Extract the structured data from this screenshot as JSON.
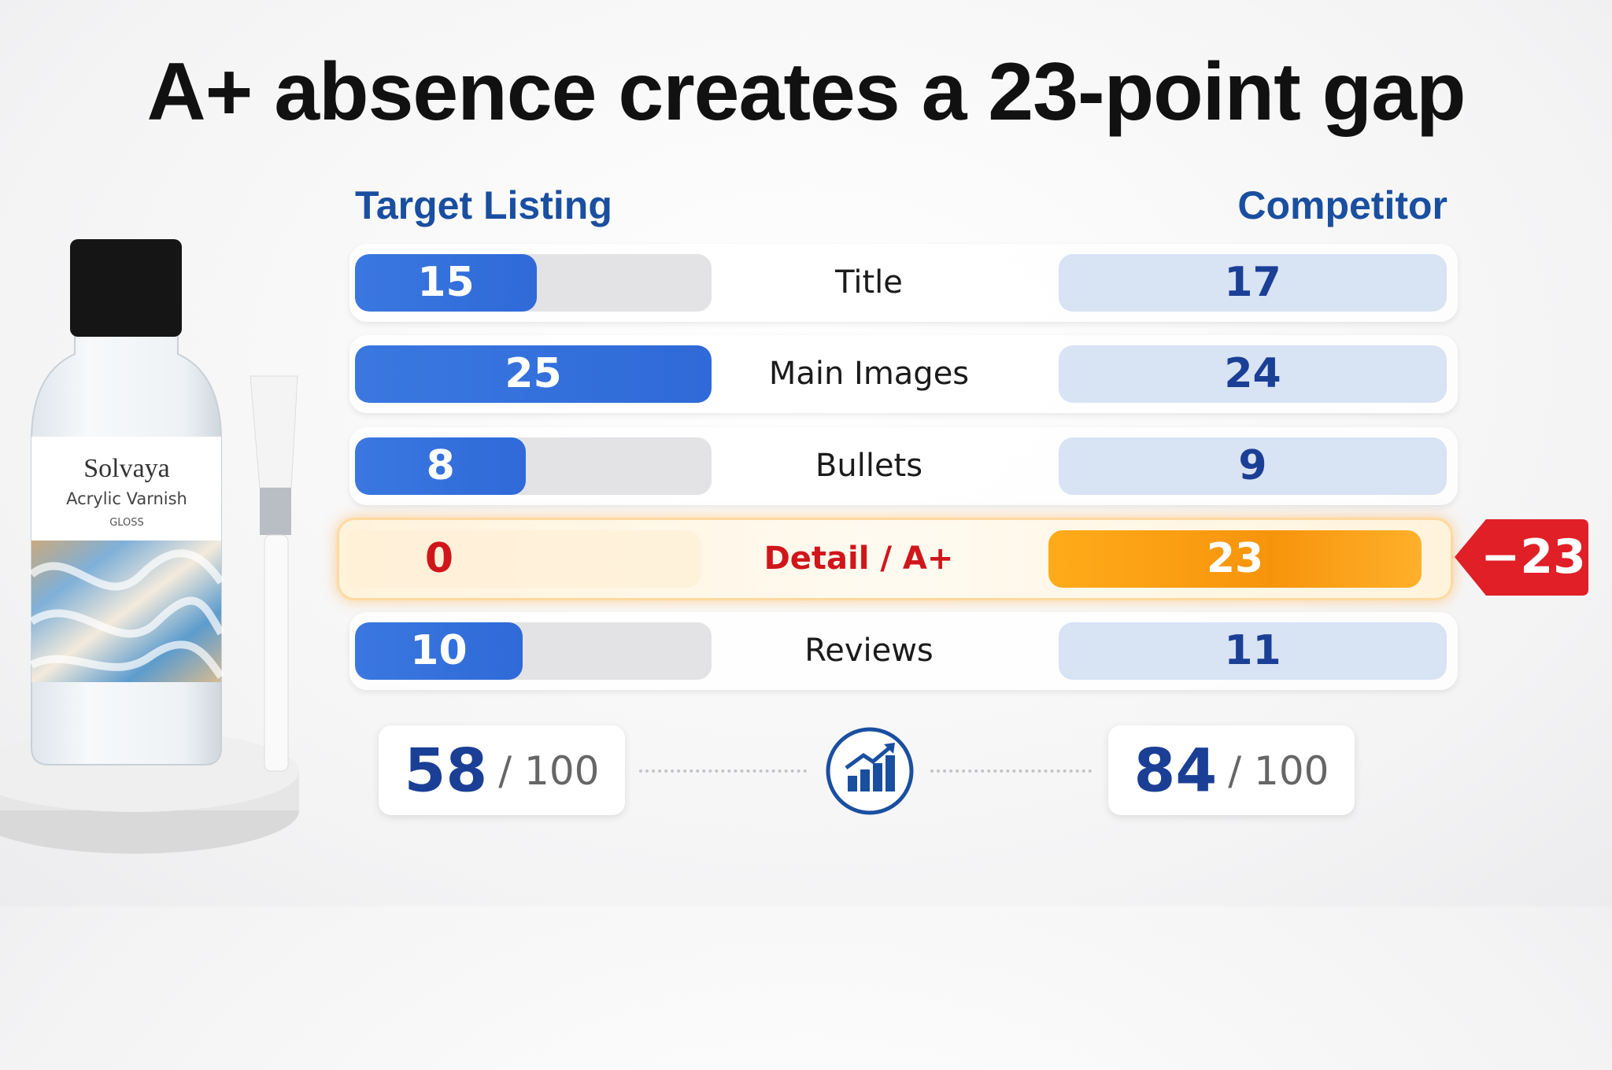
{
  "title": "A+ absence creates a 23-point gap",
  "headers": {
    "target": "Target Listing",
    "competitor": "Competitor"
  },
  "rows": [
    {
      "label": "Title",
      "target": 15,
      "competitor": 17
    },
    {
      "label": "Main Images",
      "target": 25,
      "competitor": 24
    },
    {
      "label": "Bullets",
      "target": 8,
      "competitor": 9
    },
    {
      "label": "Detail / A+",
      "target": 0,
      "competitor": 23,
      "highlight": true
    },
    {
      "label": "Reviews",
      "target": 10,
      "competitor": 11
    }
  ],
  "gap_badge": "−23",
  "product": {
    "brand": "Solvaya",
    "name": "Acrylic Varnish",
    "finish": "GLOSS"
  },
  "scores": {
    "target": {
      "score": 58,
      "scale": "/ 100"
    },
    "competitor": {
      "score": 84,
      "scale": "/ 100"
    }
  }
}
